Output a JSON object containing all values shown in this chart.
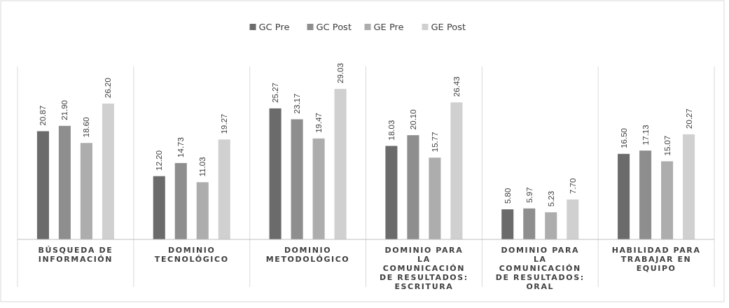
{
  "chart_data": {
    "type": "bar",
    "categories": [
      "BÚSQUEDA DE INFORMACIÓN",
      "DOMINIO TECNOLÓGICO",
      "DOMINIO METODOLÓGICO",
      "DOMINIO PARA LA COMUNICACIÓN DE RESULTADOS: ESCRITURA",
      "DOMINIO PARA LA COMUNICACIÓN DE RESULTADOS: ORAL",
      "HABILIDAD PARA TRABAJAR EN EQUIPO"
    ],
    "series": [
      {
        "name": "GC Pre",
        "color": "#6b6b6b",
        "values": [
          20.87,
          12.2,
          25.27,
          18.03,
          5.8,
          16.5
        ],
        "value_labels": [
          "20.87",
          "12.20",
          "25.27",
          "18.03",
          "5.80",
          "16.50"
        ]
      },
      {
        "name": "GC Post",
        "color": "#8e8e8e",
        "values": [
          21.9,
          14.73,
          23.17,
          20.1,
          5.97,
          17.13
        ],
        "value_labels": [
          "21.90",
          "14.73",
          "23.17",
          "20.10",
          "5.97",
          "17.13"
        ]
      },
      {
        "name": "GE Pre",
        "color": "#adadad",
        "values": [
          18.6,
          11.03,
          19.47,
          15.77,
          5.23,
          15.07
        ],
        "value_labels": [
          "18.60",
          "11.03",
          "19.47",
          "15.77",
          "5.23",
          "15.07"
        ]
      },
      {
        "name": "GE Post",
        "color": "#d0d0d0",
        "values": [
          26.2,
          19.27,
          29.03,
          26.43,
          7.7,
          20.27
        ],
        "value_labels": [
          "26.20",
          "19.27",
          "29.03",
          "26.43",
          "7.70",
          "20.27"
        ]
      }
    ],
    "legend": "top",
    "grid": "x"
  }
}
